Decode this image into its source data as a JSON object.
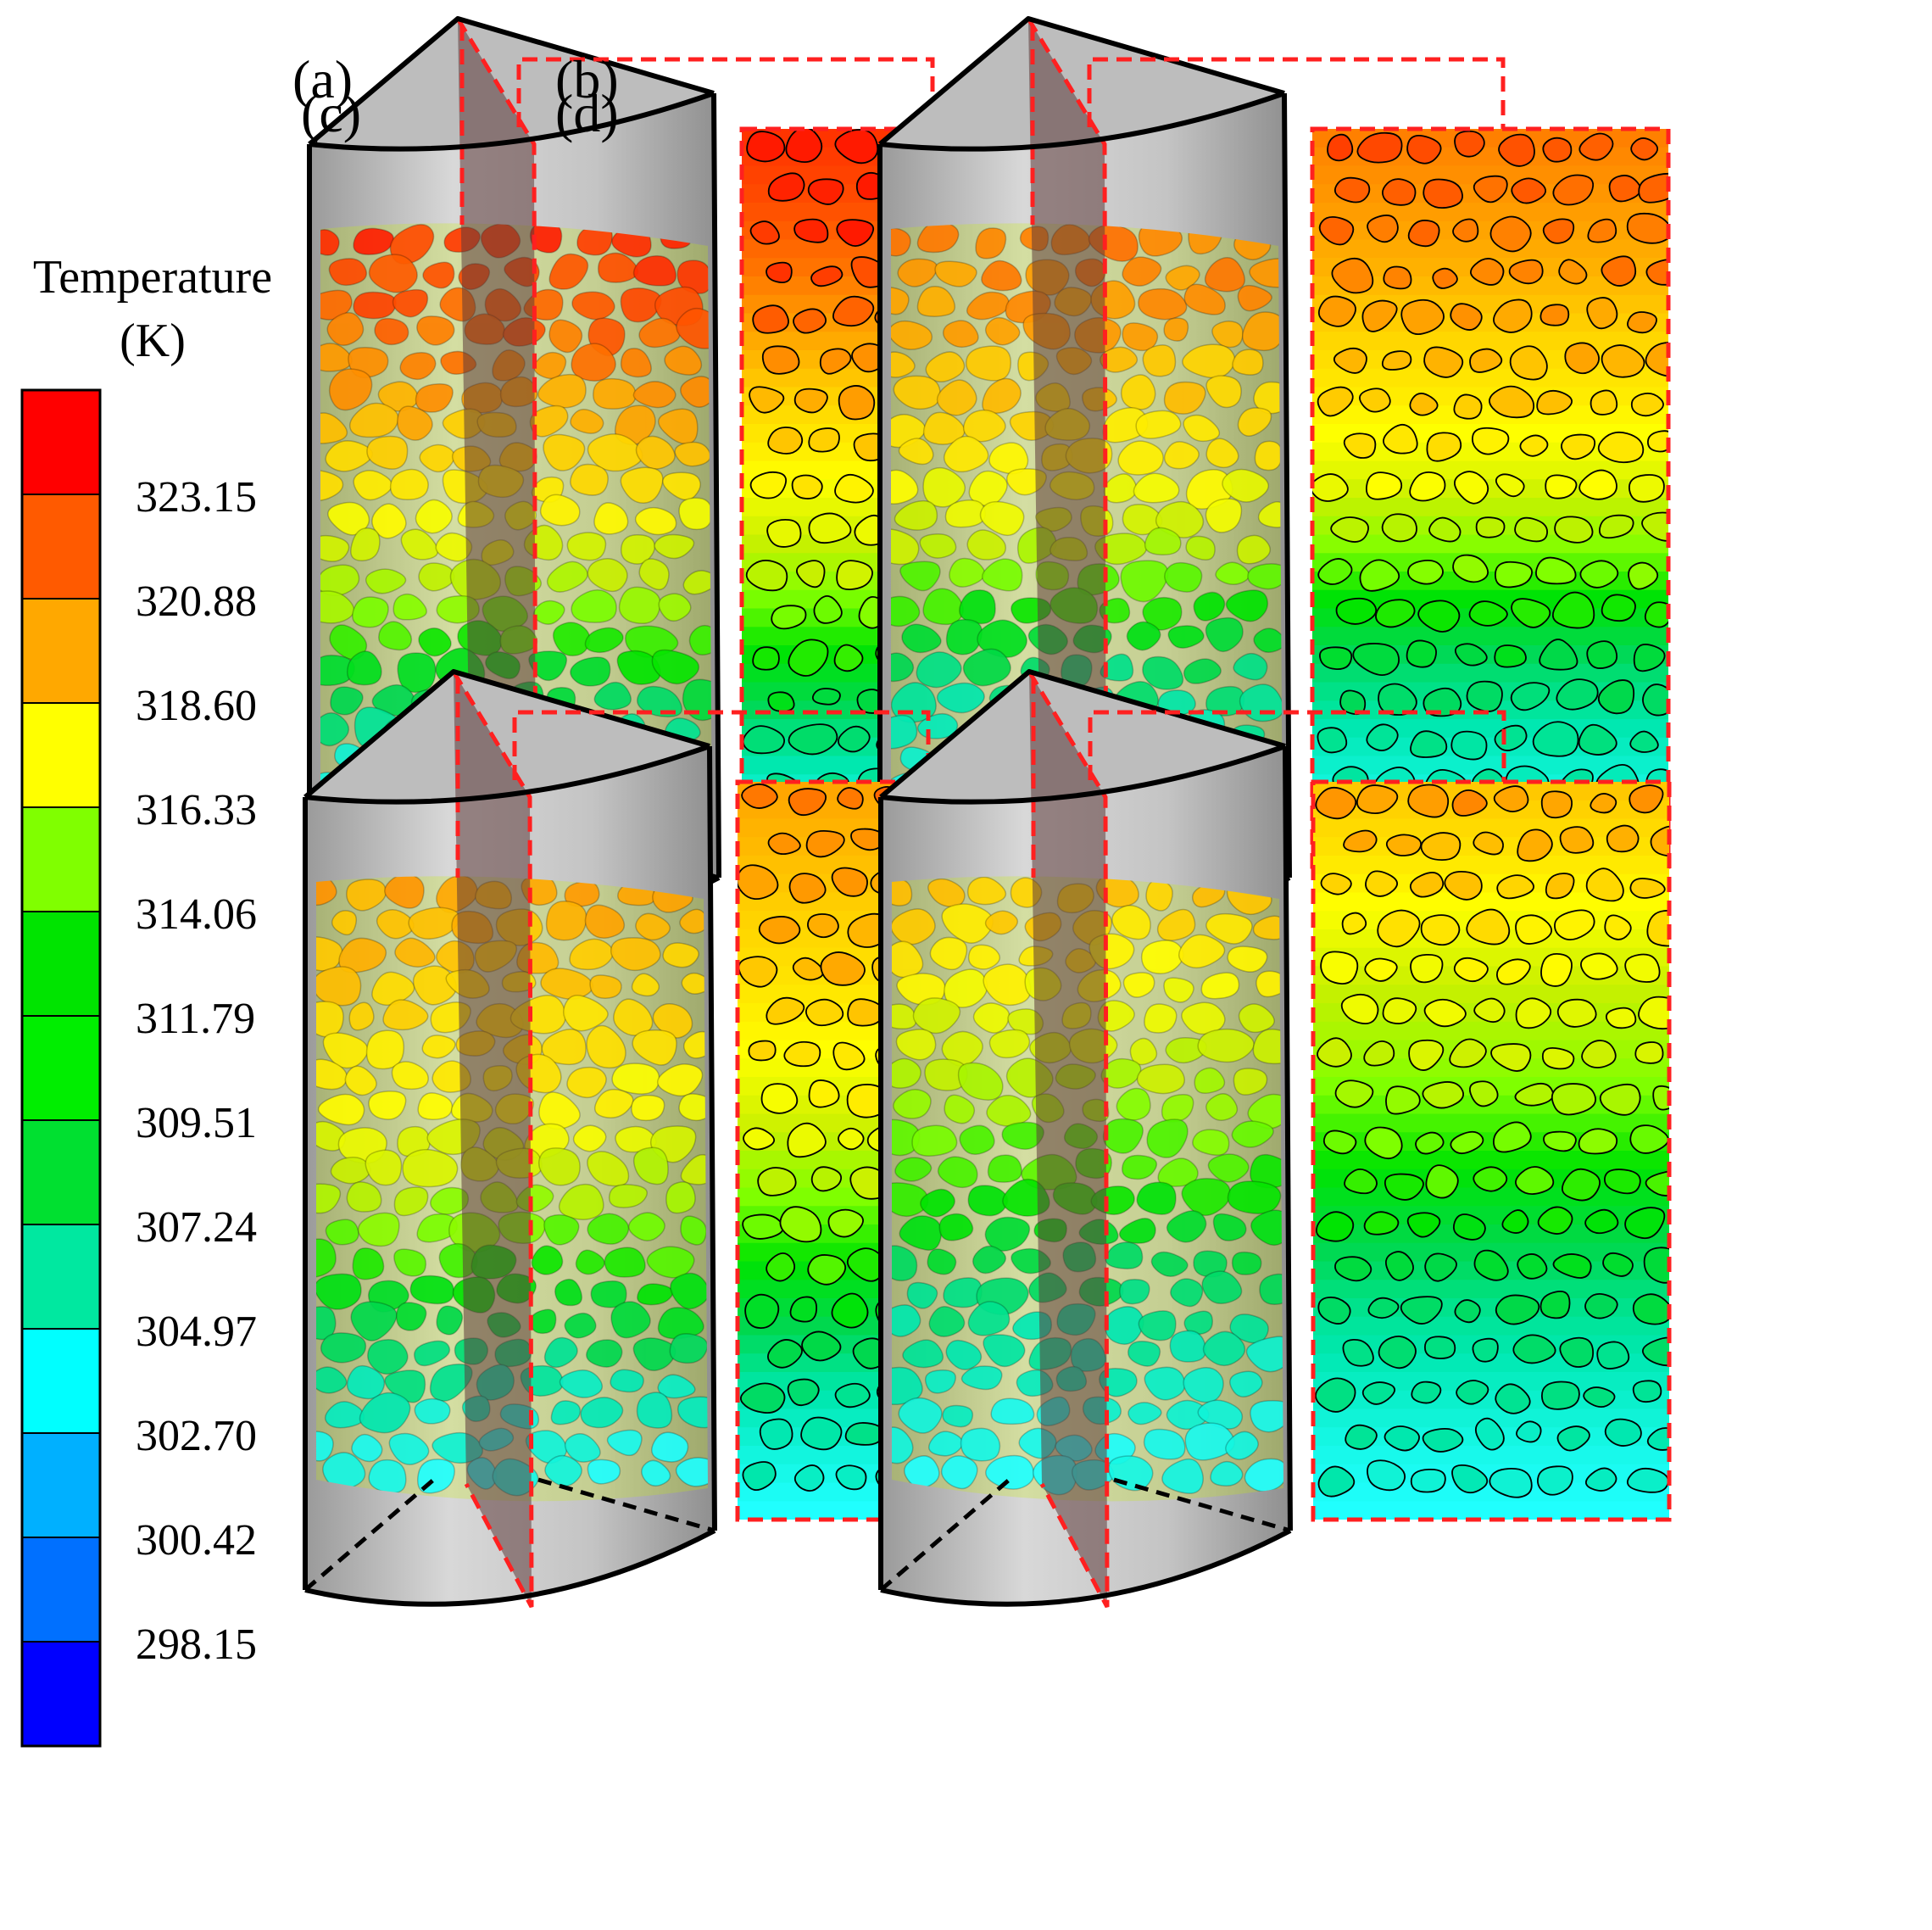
{
  "legend": {
    "title_line1": "Temperature",
    "title_line2": "(K)",
    "colors": [
      "#ff0000",
      "#ff5a00",
      "#ffa800",
      "#ffff00",
      "#80ff00",
      "#00e400",
      "#00ee00",
      "#00e030",
      "#00e8a0",
      "#00ffff",
      "#00b0ff",
      "#0070ff",
      "#0000ff"
    ],
    "labels": [
      "323.15",
      "320.88",
      "318.60",
      "316.33",
      "314.06",
      "311.79",
      "309.51",
      "307.24",
      "304.97",
      "302.70",
      "300.42",
      "298.15"
    ]
  },
  "panels": [
    {
      "id": "a",
      "label": "(a)",
      "seed": 11,
      "profile": [
        0.04,
        0.08,
        0.14,
        0.22,
        0.3,
        0.38,
        0.48,
        0.6,
        0.72,
        0.84,
        0.94,
        1.0
      ]
    },
    {
      "id": "b",
      "label": "(b)",
      "seed": 23,
      "profile": [
        0.16,
        0.2,
        0.24,
        0.3,
        0.36,
        0.44,
        0.56,
        0.7,
        0.82,
        0.9,
        0.96,
        1.0
      ]
    },
    {
      "id": "c",
      "label": "(c)",
      "seed": 37,
      "profile": [
        0.22,
        0.26,
        0.3,
        0.34,
        0.4,
        0.48,
        0.58,
        0.68,
        0.78,
        0.88,
        0.95,
        1.0
      ]
    },
    {
      "id": "d",
      "label": "(d)",
      "seed": 53,
      "profile": [
        0.28,
        0.34,
        0.42,
        0.5,
        0.56,
        0.64,
        0.72,
        0.8,
        0.87,
        0.92,
        0.97,
        1.0
      ]
    }
  ]
}
